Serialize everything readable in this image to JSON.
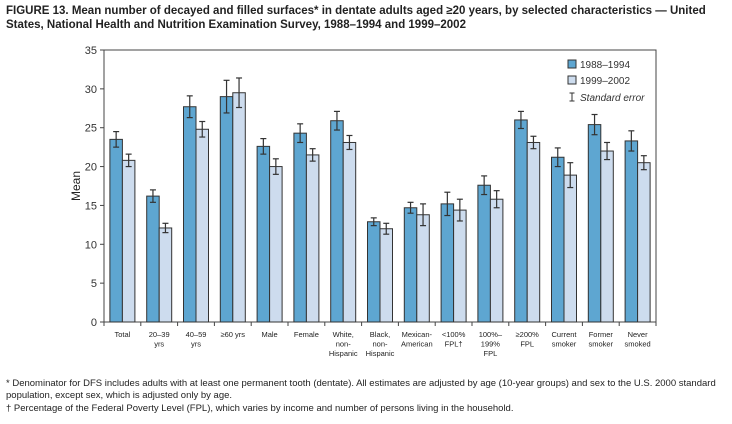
{
  "title": "FIGURE 13. Mean number of decayed and filled surfaces* in dentate adults aged ≥20 years, by selected characteristics — United States, National Health and Nutrition Examination Survey, 1988–1994 and 1999–2002",
  "chart_data": {
    "type": "bar",
    "ylabel": "Mean",
    "ylim": [
      0,
      35
    ],
    "yticks": [
      0,
      5,
      10,
      15,
      20,
      25,
      30,
      35
    ],
    "grid": false,
    "legend_position": "top-right",
    "categories": [
      [
        "Total"
      ],
      [
        "20–39",
        "yrs"
      ],
      [
        "40–59",
        "yrs"
      ],
      [
        "≥60 yrs"
      ],
      [
        "Male"
      ],
      [
        "Female"
      ],
      [
        "White,",
        "non-",
        "Hispanic"
      ],
      [
        "Black,",
        "non-",
        "Hispanic"
      ],
      [
        "Mexican-",
        "American"
      ],
      [
        "<100%",
        "FPL†"
      ],
      [
        "100%–",
        "199%",
        "FPL"
      ],
      [
        "≥200%",
        "FPL"
      ],
      [
        "Current",
        "smoker"
      ],
      [
        "Former",
        "smoker"
      ],
      [
        "Never",
        "smoked"
      ]
    ],
    "series": [
      {
        "name": "1988–1994",
        "color": "#5ea6d1",
        "values": [
          23.5,
          16.2,
          27.7,
          29.0,
          22.6,
          24.3,
          25.9,
          12.9,
          14.7,
          15.2,
          17.6,
          26.0,
          21.2,
          25.4,
          23.3
        ],
        "se": [
          1.0,
          0.8,
          1.4,
          2.1,
          1.0,
          1.2,
          1.2,
          0.5,
          0.7,
          1.5,
          1.2,
          1.1,
          1.2,
          1.3,
          1.3
        ]
      },
      {
        "name": "1999–2002",
        "color": "#cddcee",
        "values": [
          20.8,
          12.1,
          24.8,
          29.5,
          20.0,
          21.5,
          23.1,
          12.0,
          13.8,
          14.4,
          15.8,
          23.1,
          18.9,
          22.0,
          20.5
        ],
        "se": [
          0.8,
          0.6,
          1.0,
          1.9,
          1.0,
          0.8,
          0.9,
          0.7,
          1.4,
          1.4,
          1.1,
          0.8,
          1.6,
          1.1,
          0.9
        ]
      }
    ],
    "legend_error_label": "Standard error"
  },
  "footnotes": [
    "* Denominator for DFS includes adults with at least one permanent tooth (dentate). All estimates are adjusted by age (10-year groups) and sex to the U.S. 2000 standard population, except sex, which is adjusted only by age.",
    "† Percentage of the Federal Poverty Level (FPL), which varies by income and number of persons living in the household."
  ]
}
